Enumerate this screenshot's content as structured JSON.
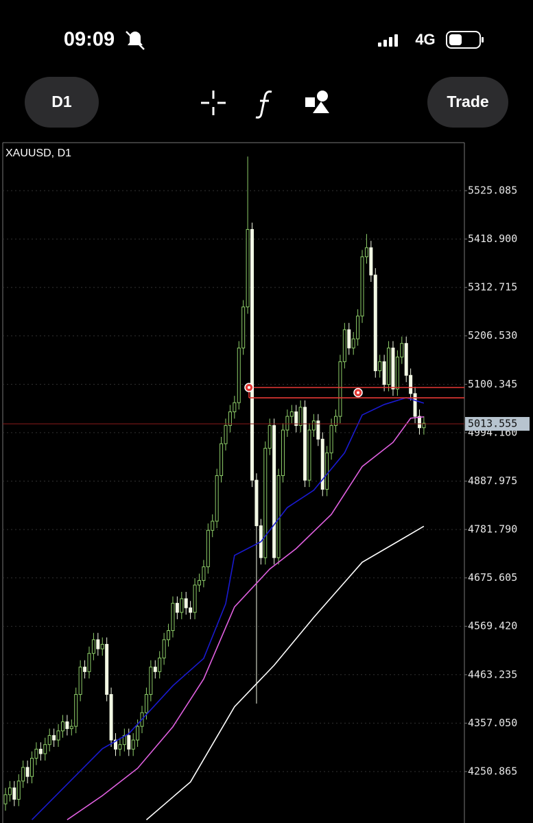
{
  "status_bar": {
    "time": "09:09",
    "network": "4G"
  },
  "toolbar": {
    "timeframe": "D1",
    "trade": "Trade"
  },
  "chart_data": {
    "type": "candlestick",
    "title": "XAUUSD, D1",
    "up_color": "#8fcf6a",
    "down_color": "#f2f8e4",
    "open": [
      4180,
      4200,
      4215,
      4190,
      4230,
      4260,
      4240,
      4280,
      4300,
      4290,
      4310,
      4330,
      4320,
      4340,
      4360,
      4345,
      4350,
      4420,
      4480,
      4470,
      4510,
      4540,
      4520,
      4530,
      4420,
      4320,
      4300,
      4310,
      4330,
      4300,
      4320,
      4350,
      4380,
      4420,
      4480,
      4470,
      4500,
      4540,
      4560,
      4620,
      4600,
      4630,
      4610,
      4600,
      4660,
      4670,
      4700,
      4780,
      4800,
      4900,
      4970,
      5010,
      5040,
      5060,
      5180,
      5270,
      5440,
      4890,
      4790,
      4720,
      4960,
      5010,
      4720,
      4900,
      5000,
      5030,
      5040,
      5010,
      5050,
      4890,
      5000,
      5020,
      4980,
      4870,
      4950,
      5010,
      5030,
      5150,
      5220,
      5180,
      5200,
      5250,
      5380,
      5400,
      5340,
      5130,
      5150,
      5100,
      5180,
      5090,
      5160,
      5190,
      5120,
      5080,
      5030,
      5005
    ],
    "high": [
      4215,
      4230,
      4230,
      4245,
      4275,
      4275,
      4295,
      4315,
      4315,
      4325,
      4345,
      4345,
      4355,
      4375,
      4375,
      4365,
      4435,
      4495,
      4495,
      4525,
      4555,
      4555,
      4545,
      4545,
      4435,
      4335,
      4325,
      4345,
      4345,
      4335,
      4365,
      4395,
      4435,
      4495,
      4495,
      4515,
      4555,
      4575,
      4635,
      4635,
      4645,
      4645,
      4625,
      4675,
      4685,
      4715,
      4795,
      4815,
      4915,
      4985,
      5025,
      5055,
      5075,
      5195,
      5285,
      5600,
      5455,
      4905,
      4805,
      4975,
      5025,
      5025,
      4915,
      5015,
      5045,
      5055,
      5055,
      5065,
      5065,
      5015,
      5035,
      5035,
      4995,
      4965,
      5025,
      5045,
      5165,
      5235,
      5235,
      5215,
      5265,
      5395,
      5430,
      5415,
      5355,
      5165,
      5165,
      5195,
      5195,
      5175,
      5205,
      5205,
      5135,
      5095,
      5045,
      5030
    ],
    "low": [
      4165,
      4185,
      4175,
      4175,
      4215,
      4225,
      4225,
      4265,
      4275,
      4275,
      4295,
      4305,
      4305,
      4325,
      4330,
      4330,
      4335,
      4405,
      4455,
      4455,
      4495,
      4505,
      4505,
      4405,
      4305,
      4285,
      4285,
      4295,
      4285,
      4285,
      4305,
      4335,
      4365,
      4405,
      4455,
      4455,
      4485,
      4525,
      4545,
      4585,
      4585,
      4595,
      4585,
      4585,
      4645,
      4655,
      4685,
      4765,
      4785,
      4885,
      4955,
      4995,
      5025,
      5045,
      5165,
      5255,
      4875,
      4400,
      4705,
      4705,
      4945,
      4705,
      4705,
      4885,
      4985,
      5015,
      4995,
      4995,
      4875,
      4875,
      4985,
      4965,
      4855,
      4855,
      4935,
      4995,
      5015,
      5135,
      5165,
      5165,
      5185,
      5235,
      5365,
      5325,
      5115,
      5115,
      5085,
      5085,
      5075,
      5075,
      5145,
      5105,
      5065,
      5015,
      4990,
      4990
    ],
    "close": [
      4200,
      4215,
      4190,
      4230,
      4260,
      4240,
      4280,
      4300,
      4290,
      4310,
      4330,
      4320,
      4340,
      4360,
      4345,
      4350,
      4420,
      4480,
      4470,
      4510,
      4540,
      4520,
      4530,
      4420,
      4320,
      4300,
      4310,
      4330,
      4300,
      4320,
      4350,
      4380,
      4420,
      4480,
      4470,
      4500,
      4540,
      4560,
      4620,
      4600,
      4630,
      4610,
      4600,
      4660,
      4670,
      4700,
      4780,
      4800,
      4900,
      4970,
      5010,
      5040,
      5060,
      5180,
      5270,
      5440,
      4890,
      4790,
      4720,
      4960,
      5010,
      4720,
      4900,
      5000,
      5030,
      5040,
      5010,
      5050,
      4890,
      5000,
      5020,
      4980,
      4870,
      4950,
      5010,
      5030,
      5150,
      5220,
      5180,
      5200,
      5250,
      5380,
      5400,
      5340,
      5130,
      5150,
      5100,
      5180,
      5090,
      5160,
      5190,
      5120,
      5080,
      5030,
      5005,
      5015
    ],
    "lines": [
      {
        "color": "#1a1ad0",
        "x": [
          6,
          22,
          28,
          38,
          45,
          50,
          52,
          58,
          64,
          70,
          77,
          81,
          86,
          91,
          95
        ],
        "values": [
          4145,
          4301,
          4334,
          4439,
          4499,
          4619,
          4725,
          4755,
          4830,
          4868,
          4950,
          5033,
          5056,
          5071,
          5059
        ]
      },
      {
        "color": "#e060e0",
        "x": [
          14,
          22,
          30,
          38,
          45,
          52,
          60,
          66,
          74,
          81,
          88,
          92,
          95
        ],
        "values": [
          4145,
          4198,
          4258,
          4349,
          4454,
          4612,
          4695,
          4740,
          4815,
          4920,
          4973,
          5026,
          5029
        ]
      },
      {
        "color": "#ffffff",
        "x": [
          32,
          42,
          52,
          61,
          70,
          81,
          89,
          95
        ],
        "values": [
          4145,
          4228,
          4393,
          4484,
          4589,
          4710,
          4755,
          4789
        ]
      }
    ],
    "drawn_levels": [
      5093.3,
      5070.7
    ],
    "current_price": 5013.555,
    "ylim": [
      4141,
      5630.4
    ],
    "yticks": [
      5525.085,
      {
        "value": 5418.9,
        "label": "5418.900"
      },
      5312.715,
      {
        "value": 5206.53,
        "label": "5206.530"
      },
      5100.345,
      {
        "value": 4994.16,
        "label": "4994.160"
      },
      4887.975,
      {
        "value": 4781.79,
        "label": "4781.790"
      },
      4675.605,
      {
        "value": 4569.42,
        "label": "4569.420"
      },
      4463.235,
      {
        "value": 4357.05,
        "label": "4357.050"
      },
      4250.865
    ],
    "grid": true
  }
}
